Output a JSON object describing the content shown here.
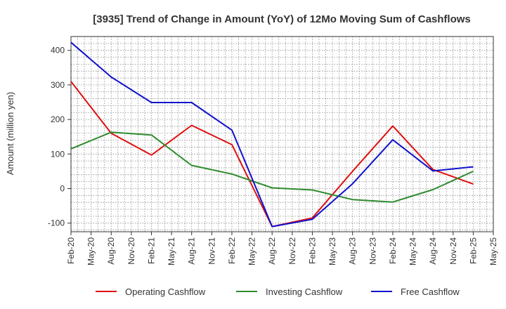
{
  "chart_data": {
    "type": "line",
    "title": "[3935]  Trend of Change in Amount (YoY) of 12Mo Moving Sum of Cashflows",
    "xlabel": "",
    "ylabel": "Amount (million yen)",
    "ylim": [
      -125,
      440
    ],
    "yticks": [
      -100,
      0,
      100,
      200,
      300,
      400
    ],
    "categories": [
      "Feb-20",
      "May-20",
      "Aug-20",
      "Nov-20",
      "Feb-21",
      "May-21",
      "Aug-21",
      "Nov-21",
      "Feb-22",
      "May-22",
      "Aug-22",
      "Nov-22",
      "Feb-23",
      "May-23",
      "Aug-23",
      "Nov-23",
      "Feb-24",
      "May-24",
      "Aug-24",
      "Nov-24",
      "Feb-25",
      "May-25"
    ],
    "grid": true,
    "legend_position": "bottom",
    "series": [
      {
        "name": "Operating Cashflow",
        "color": "#dd1111",
        "values": [
          310,
          null,
          160,
          null,
          97,
          null,
          183,
          null,
          127,
          null,
          -110,
          null,
          -85,
          null,
          50,
          null,
          181,
          null,
          55,
          null,
          13,
          null
        ]
      },
      {
        "name": "Investing Cashflow",
        "color": "#2e8b2e",
        "values": [
          115,
          null,
          163,
          null,
          155,
          null,
          67,
          null,
          42,
          null,
          2,
          null,
          -4,
          null,
          -32,
          null,
          -39,
          null,
          -3,
          null,
          50,
          null
        ]
      },
      {
        "name": "Free Cashflow",
        "color": "#1111cc",
        "values": [
          423,
          null,
          323,
          null,
          249,
          null,
          249,
          null,
          169,
          null,
          -110,
          null,
          -89,
          null,
          14,
          null,
          141,
          null,
          51,
          null,
          63,
          null
        ]
      }
    ]
  }
}
